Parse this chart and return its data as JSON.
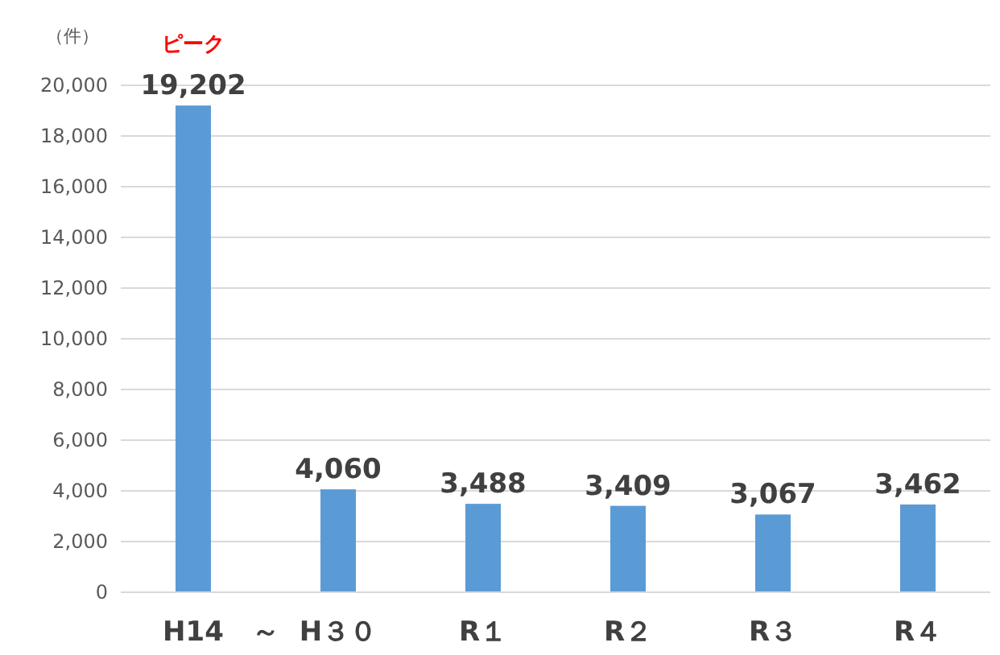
{
  "chart_data": {
    "type": "bar",
    "ylabel": "（件）",
    "categories": [
      "H14",
      "H３０",
      "R１",
      "R２",
      "R３",
      "R４"
    ],
    "values": [
      19202,
      4060,
      3488,
      3409,
      3067,
      3462
    ],
    "value_labels": [
      "19,202",
      "4,060",
      "3,488",
      "3,409",
      "3,067",
      "3,462"
    ],
    "color": "#5b9bd5",
    "grid": "y",
    "ylim": [
      0,
      20000
    ],
    "yticks": [
      {
        "value": 0,
        "label": "0"
      },
      {
        "value": 2000,
        "label": "2,000"
      },
      {
        "value": 4000,
        "label": "4,000"
      },
      {
        "value": 6000,
        "label": "6,000"
      },
      {
        "value": 8000,
        "label": "8,000"
      },
      {
        "value": 10000,
        "label": "10,000"
      },
      {
        "value": 12000,
        "label": "12,000"
      },
      {
        "value": 14000,
        "label": "14,000"
      },
      {
        "value": 16000,
        "label": "16,000"
      },
      {
        "value": 18000,
        "label": "18,000"
      },
      {
        "value": 20000,
        "label": "20,000"
      }
    ],
    "annotations": [
      {
        "text": "ピーク",
        "x": "H14",
        "y": 19202
      },
      "～"
    ]
  }
}
